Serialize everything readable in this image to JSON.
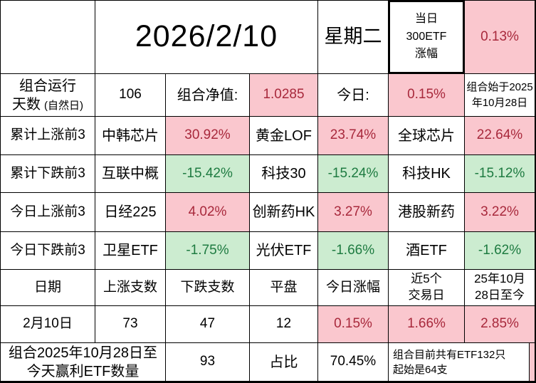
{
  "colors": {
    "pink_bg": "#FAC7CE",
    "red_text": "#A8293C",
    "green_bg": "#CCECD0",
    "green_text": "#1E7B41",
    "border": "#000000"
  },
  "header": {
    "date": "2026/2/10",
    "weekday": "星期二",
    "etf300_label_lines": [
      "当日",
      "300ETF",
      "涨幅"
    ],
    "etf300_change": "0.13%"
  },
  "summary": {
    "run_days_label_main": "组合运行",
    "run_days_label_sub": "天数",
    "run_days_label_note": "(自然日)",
    "run_days_value": "106",
    "nav_label": "组合净值:",
    "nav_value": "1.0285",
    "today_label": "今日:",
    "today_value": "0.15%",
    "start_note_lines": [
      "组合始于2025",
      "年10月28日"
    ]
  },
  "rankings": [
    {
      "label": "累计上涨前3",
      "direction": "up",
      "items": [
        {
          "name": "中韩芯片",
          "value": "30.92%"
        },
        {
          "name": "黄金LOF",
          "value": "23.74%"
        },
        {
          "name": "全球芯片",
          "value": "22.64%"
        }
      ]
    },
    {
      "label": "累计下跌前3",
      "direction": "down",
      "items": [
        {
          "name": "互联中概",
          "value": "-15.42%"
        },
        {
          "name": "科技30",
          "value": "-15.24%"
        },
        {
          "name": "科技HK",
          "value": "-15.12%"
        }
      ]
    },
    {
      "label": "今日上涨前3",
      "direction": "up",
      "items": [
        {
          "name": "日经225",
          "value": "4.02%"
        },
        {
          "name": "创新药HK",
          "value": "3.27%"
        },
        {
          "name": "港股新药",
          "value": "3.22%"
        }
      ]
    },
    {
      "label": "今日下跌前3",
      "direction": "down",
      "items": [
        {
          "name": "卫星ETF",
          "value": "-1.75%"
        },
        {
          "name": "光伏ETF",
          "value": "-1.66%"
        },
        {
          "name": "酒ETF",
          "value": "-1.62%"
        }
      ]
    }
  ],
  "daily_table": {
    "headers": [
      [
        "日期"
      ],
      [
        "上涨支数"
      ],
      [
        "下跌支数"
      ],
      [
        "平盘"
      ],
      [
        "今日涨幅"
      ],
      [
        "近5个",
        "交易日"
      ],
      [
        "25年10月",
        "28日至今"
      ]
    ],
    "row": [
      "2月10日",
      "73",
      "47",
      "12",
      "0.15%",
      "1.66%",
      "2.85%"
    ]
  },
  "footer": {
    "label_lines": [
      "组合2025年10月28日至",
      "今天赢利ETF数量"
    ],
    "win_count": "93",
    "ratio_label": "占比",
    "ratio_value": "70.45%",
    "note_lines": [
      "组合目前共有ETF132只",
      "起始是64支"
    ]
  }
}
